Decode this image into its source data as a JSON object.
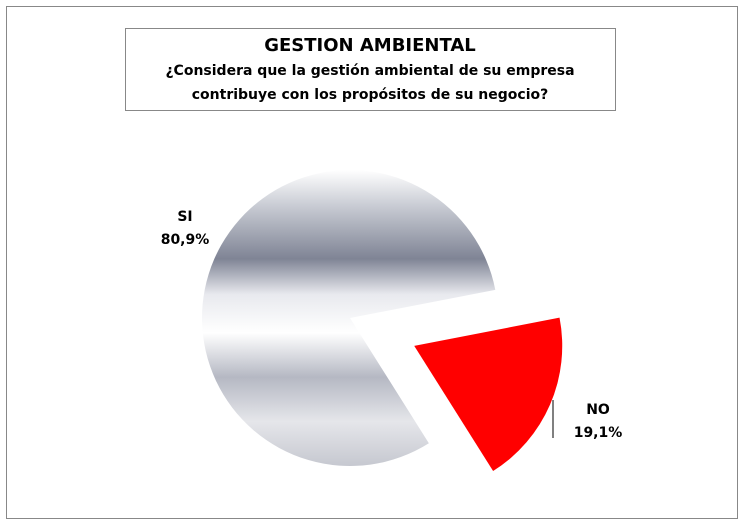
{
  "chart_data": {
    "type": "pie",
    "title": "GESTION AMBIENTAL",
    "subtitle": "¿Considera que la gestión ambiental de su empresa contribuye con los propósitos de su negocio?",
    "categories": [
      "SI",
      "NO"
    ],
    "values": [
      80.9,
      19.1
    ],
    "value_labels": [
      "80,9%",
      "19,1%"
    ],
    "colors": [
      "#7f8495",
      "#ff0000"
    ]
  }
}
